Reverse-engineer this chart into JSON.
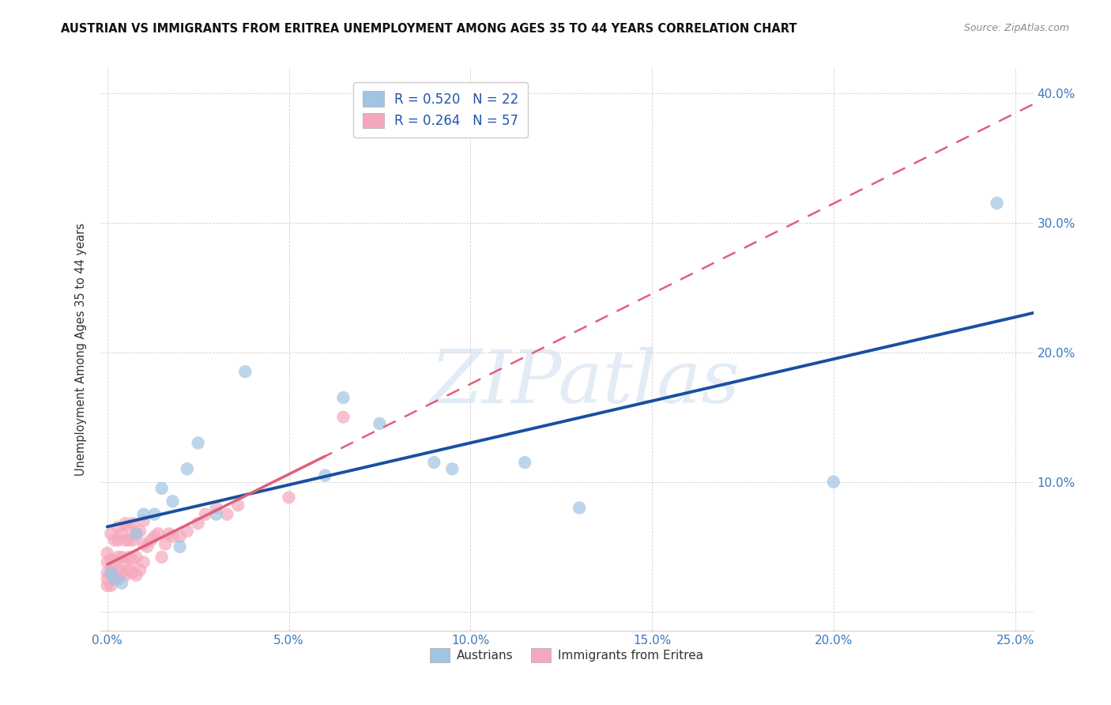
{
  "title": "AUSTRIAN VS IMMIGRANTS FROM ERITREA UNEMPLOYMENT AMONG AGES 35 TO 44 YEARS CORRELATION CHART",
  "source": "Source: ZipAtlas.com",
  "ylabel": "Unemployment Among Ages 35 to 44 years",
  "xlim": [
    -0.002,
    0.255
  ],
  "ylim": [
    -0.015,
    0.42
  ],
  "xticks": [
    0.0,
    0.05,
    0.1,
    0.15,
    0.2,
    0.25
  ],
  "yticks": [
    0.0,
    0.1,
    0.2,
    0.3,
    0.4
  ],
  "xtick_labels": [
    "0.0%",
    "5.0%",
    "10.0%",
    "15.0%",
    "20.0%",
    "25.0%"
  ],
  "ytick_labels": [
    "",
    "10.0%",
    "20.0%",
    "30.0%",
    "40.0%"
  ],
  "watermark_text": "ZIPatlas",
  "austrian_color": "#a0c4e2",
  "austrian_trend_color": "#1a4fa0",
  "eritrean_color": "#f5a8bc",
  "eritrean_trend_color": "#e0607a",
  "legend_line1": "R = 0.520   N = 22",
  "legend_line2": "R = 0.264   N = 57",
  "aus_label": "Austrians",
  "eri_label": "Immigrants from Eritrea",
  "x_aus": [
    0.001,
    0.002,
    0.004,
    0.008,
    0.01,
    0.013,
    0.015,
    0.018,
    0.02,
    0.022,
    0.025,
    0.03,
    0.038,
    0.06,
    0.065,
    0.075,
    0.09,
    0.095,
    0.115,
    0.13,
    0.2,
    0.245
  ],
  "y_aus": [
    0.03,
    0.025,
    0.022,
    0.06,
    0.075,
    0.075,
    0.095,
    0.085,
    0.05,
    0.11,
    0.13,
    0.075,
    0.185,
    0.105,
    0.165,
    0.145,
    0.115,
    0.11,
    0.115,
    0.08,
    0.1,
    0.315
  ],
  "x_eri": [
    0.0,
    0.0,
    0.0,
    0.0,
    0.0,
    0.001,
    0.001,
    0.001,
    0.001,
    0.002,
    0.002,
    0.002,
    0.003,
    0.003,
    0.003,
    0.003,
    0.003,
    0.004,
    0.004,
    0.004,
    0.005,
    0.005,
    0.005,
    0.005,
    0.006,
    0.006,
    0.006,
    0.006,
    0.007,
    0.007,
    0.007,
    0.007,
    0.008,
    0.008,
    0.008,
    0.009,
    0.009,
    0.01,
    0.01,
    0.01,
    0.011,
    0.012,
    0.013,
    0.014,
    0.015,
    0.016,
    0.017,
    0.018,
    0.02,
    0.022,
    0.025,
    0.027,
    0.03,
    0.033,
    0.036,
    0.05,
    0.065
  ],
  "y_eri": [
    0.02,
    0.025,
    0.03,
    0.038,
    0.045,
    0.02,
    0.03,
    0.04,
    0.06,
    0.025,
    0.038,
    0.055,
    0.025,
    0.032,
    0.042,
    0.055,
    0.065,
    0.03,
    0.042,
    0.06,
    0.028,
    0.038,
    0.055,
    0.068,
    0.032,
    0.042,
    0.055,
    0.065,
    0.03,
    0.04,
    0.055,
    0.068,
    0.028,
    0.042,
    0.06,
    0.032,
    0.062,
    0.038,
    0.052,
    0.07,
    0.05,
    0.055,
    0.058,
    0.06,
    0.042,
    0.052,
    0.06,
    0.058,
    0.058,
    0.062,
    0.068,
    0.075,
    0.08,
    0.075,
    0.082,
    0.088,
    0.15
  ]
}
